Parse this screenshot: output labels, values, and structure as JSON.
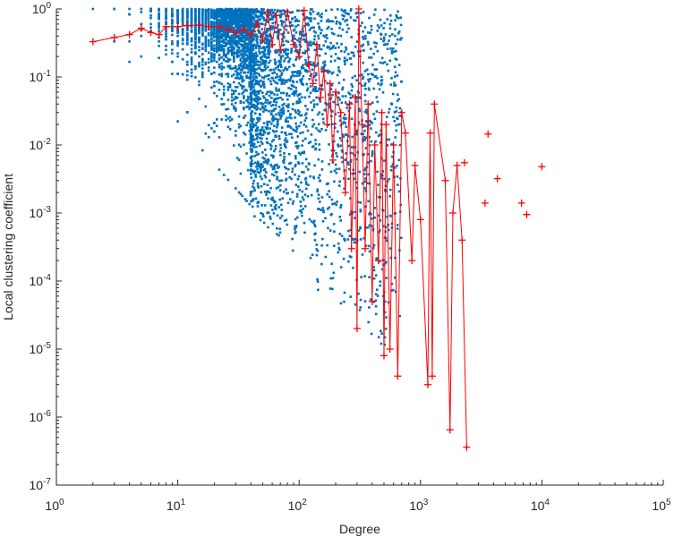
{
  "chart_data": {
    "type": "scatter",
    "xlabel": "Degree",
    "ylabel": "Local clustering coefficient",
    "xscale": "log",
    "yscale": "log",
    "xlim": [
      1,
      100000
    ],
    "ylim": [
      1e-07,
      1
    ],
    "x_ticks": [
      {
        "base": "10",
        "exp": "0"
      },
      {
        "base": "10",
        "exp": "1"
      },
      {
        "base": "10",
        "exp": "2"
      },
      {
        "base": "10",
        "exp": "3"
      },
      {
        "base": "10",
        "exp": "4"
      },
      {
        "base": "10",
        "exp": "5"
      }
    ],
    "y_ticks": [
      {
        "base": "10",
        "exp": "0"
      },
      {
        "base": "10",
        "exp": "-1"
      },
      {
        "base": "10",
        "exp": "-2"
      },
      {
        "base": "10",
        "exp": "-3"
      },
      {
        "base": "10",
        "exp": "-4"
      },
      {
        "base": "10",
        "exp": "-5"
      },
      {
        "base": "10",
        "exp": "-6"
      },
      {
        "base": "10",
        "exp": "-7"
      }
    ],
    "grid": false,
    "colors": {
      "nodes": "#0072bd",
      "average": "#ff0000",
      "axis": "#262626"
    },
    "series": [
      {
        "name": "nodes",
        "marker": "dot",
        "distribution": {
          "min_degree": 2,
          "max_degree": 700,
          "lower_bound_coefficient": 1.5,
          "lower_bound_exponent": -2,
          "upper": 1
        }
      },
      {
        "name": "average",
        "marker": "plus",
        "line": true,
        "points": [
          [
            2,
            0.33
          ],
          [
            3,
            0.38
          ],
          [
            4,
            0.42
          ],
          [
            5,
            0.52
          ],
          [
            6,
            0.45
          ],
          [
            7,
            0.42
          ],
          [
            8,
            0.55
          ],
          [
            10,
            0.55
          ],
          [
            12,
            0.57
          ],
          [
            15,
            0.58
          ],
          [
            18,
            0.55
          ],
          [
            22,
            0.55
          ],
          [
            26,
            0.5
          ],
          [
            30,
            0.45
          ],
          [
            35,
            0.5
          ],
          [
            40,
            0.42
          ],
          [
            45,
            0.6
          ],
          [
            50,
            0.35
          ],
          [
            55,
            0.9
          ],
          [
            60,
            0.3
          ],
          [
            65,
            0.8
          ],
          [
            70,
            0.25
          ],
          [
            80,
            0.9
          ],
          [
            90,
            0.3
          ],
          [
            100,
            0.2
          ],
          [
            110,
            0.95
          ],
          [
            120,
            0.15
          ],
          [
            130,
            0.08
          ],
          [
            140,
            0.3
          ],
          [
            150,
            0.05
          ],
          [
            160,
            0.12
          ],
          [
            170,
            0.02
          ],
          [
            180,
            0.08
          ],
          [
            190,
            0.006
          ],
          [
            200,
            0.06
          ],
          [
            220,
            0.03
          ],
          [
            240,
            0.002
          ],
          [
            260,
            0.04
          ],
          [
            270,
            0.0003
          ],
          [
            290,
            0.05
          ],
          [
            300,
            2e-05
          ],
          [
            310,
            1
          ],
          [
            330,
            0.02
          ],
          [
            350,
            0.0003
          ],
          [
            370,
            0.04
          ],
          [
            400,
            5e-05
          ],
          [
            420,
            0.01
          ],
          [
            450,
            0.0002
          ],
          [
            480,
            0.03
          ],
          [
            500,
            8e-06
          ],
          [
            520,
            0.02
          ],
          [
            560,
            1e-05
          ],
          [
            600,
            0.01
          ],
          [
            650,
            4e-06
          ],
          [
            700,
            0.03
          ],
          [
            750,
            0.015
          ],
          [
            850,
            0.0002
          ],
          [
            900,
            0.005
          ],
          [
            1000,
            0.0008
          ],
          [
            1150,
            3e-06
          ],
          [
            1200,
            0.015
          ],
          [
            1250,
            4e-06
          ],
          [
            1300,
            0.04
          ],
          [
            1600,
            0.003
          ],
          [
            1750,
            6.5e-07
          ],
          [
            1850,
            0.001
          ],
          [
            2000,
            0.005
          ],
          [
            2200,
            0.0004
          ],
          [
            2400,
            3.6e-07
          ]
        ],
        "isolated_points": [
          [
            2300,
            0.0055
          ],
          [
            3400,
            0.0014
          ],
          [
            3600,
            0.0145
          ],
          [
            4300,
            0.0032
          ],
          [
            6800,
            0.0014
          ],
          [
            7500,
            0.00095
          ],
          [
            10000,
            0.0048
          ]
        ]
      }
    ]
  }
}
